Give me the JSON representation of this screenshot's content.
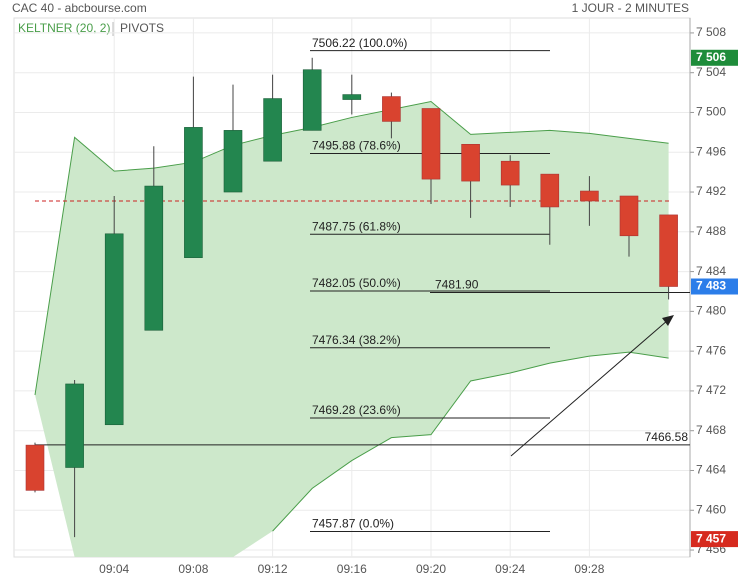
{
  "chart_data": {
    "type": "candlestick",
    "title": "CAC 40 - abcbourse.com",
    "subtitle": "1 JOUR - 2 MINUTES",
    "categories": [
      null,
      null,
      "09:04",
      null,
      "09:08",
      null,
      "09:12",
      null,
      "09:16",
      null,
      "09:20",
      null,
      "09:24",
      null,
      "09:28",
      null,
      null
    ],
    "open": [
      7466.55,
      7464.3,
      7468.6,
      7478.1,
      7485.4,
      7492.0,
      7495.1,
      7498.2,
      7501.3,
      7501.6,
      7500.4,
      7496.8,
      7495.1,
      7493.8,
      7492.1,
      7491.6,
      7489.7
    ],
    "high": [
      7466.8,
      7473.1,
      7491.6,
      7496.6,
      7503.6,
      7502.8,
      7503.8,
      7505.5,
      7503.8,
      7502.0,
      7500.4,
      7496.8,
      7495.7,
      7493.8,
      7493.6,
      7491.6,
      7489.7
    ],
    "low": [
      7461.8,
      7457.3,
      7468.6,
      7478.1,
      7485.4,
      7492.0,
      7495.1,
      7498.2,
      7499.8,
      7497.4,
      7490.8,
      7489.4,
      7490.5,
      7486.7,
      7488.6,
      7485.5,
      7481.2
    ],
    "close": [
      7462.0,
      7472.7,
      7487.8,
      7492.6,
      7498.5,
      7498.2,
      7501.4,
      7504.3,
      7501.8,
      7499.1,
      7493.3,
      7493.1,
      7492.7,
      7490.5,
      7491.1,
      7487.6,
      7482.5
    ],
    "up_color": "#23864f",
    "down_color": "#d9432f",
    "keltner": {
      "name": "KELTNER (20, 2)",
      "color": "#4a9e4a",
      "fill": "#cde8cb",
      "upper": [
        7471.6,
        7497.5,
        7494.1,
        7494.4,
        7495.0,
        7496.7,
        7497.7,
        7498.5,
        7499.5,
        7500.3,
        7501.1,
        7497.8,
        7498.0,
        7498.2,
        7497.9,
        7497.4,
        7496.9
      ],
      "lower": [
        7471.6,
        null,
        null,
        null,
        null,
        null,
        7457.9,
        7462.2,
        7465.0,
        7467.3,
        7467.6,
        7473.0,
        7473.8,
        7474.8,
        7475.5,
        7475.9,
        7475.3
      ]
    },
    "pivots_label": "PIVOTS",
    "pivot_line": {
      "value": 7491.1,
      "color": "#cc2222"
    },
    "fib_levels": [
      {
        "value": 7506.22,
        "label": "7506.22  (100.0%)"
      },
      {
        "value": 7495.88,
        "label": "7495.88  (78.6%)"
      },
      {
        "value": 7487.75,
        "label": "7487.75  (61.8%)"
      },
      {
        "value": 7482.05,
        "label": "7482.05  (50.0%)"
      },
      {
        "value": 7476.34,
        "label": "7476.34  (38.2%)"
      },
      {
        "value": 7469.28,
        "label": "7469.28  (23.6%)"
      },
      {
        "value": 7457.87,
        "label": "7457.87  (0.0%)"
      }
    ],
    "lines": [
      {
        "value": 7481.9,
        "label": "7481.90"
      },
      {
        "value": 7466.58,
        "label": "7466.58"
      }
    ],
    "price_tags": [
      {
        "value": 7505.5,
        "label": "7 506",
        "color": "#1e8c3a"
      },
      {
        "value": 7482.5,
        "label": "7 483",
        "color": "#2b7de9"
      },
      {
        "value": 7457.1,
        "label": "7 457",
        "color": "#d62a1e"
      }
    ],
    "ylim": [
      7455.3,
      7509.5
    ],
    "yticks": [
      {
        "value": 7456,
        "label": "7 456"
      },
      {
        "value": 7460,
        "label": "7 460"
      },
      {
        "value": 7464,
        "label": "7 464"
      },
      {
        "value": 7468,
        "label": "7 468"
      },
      {
        "value": 7472,
        "label": "7 472"
      },
      {
        "value": 7476,
        "label": "7 476"
      },
      {
        "value": 7480,
        "label": "7 480"
      },
      {
        "value": 7484,
        "label": "7 484"
      },
      {
        "value": 7488,
        "label": "7 488"
      },
      {
        "value": 7492,
        "label": "7 492"
      },
      {
        "value": 7496,
        "label": "7 496"
      },
      {
        "value": 7500,
        "label": "7 500"
      },
      {
        "value": 7504,
        "label": "7 504"
      },
      {
        "value": 7508,
        "label": "7 508"
      }
    ],
    "grid": true
  }
}
